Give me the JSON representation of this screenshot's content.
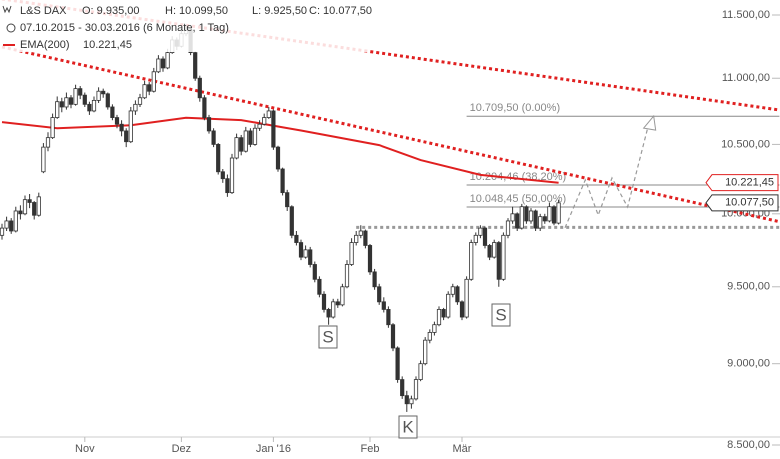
{
  "chart_data": {
    "type": "candlestick",
    "header": {
      "name": "L&S DAX",
      "ohlc": [
        "O: 9.935,00",
        "H: 10.099,50",
        "L: 9.925,50",
        "C: 10.077,50"
      ],
      "range": "07.10.2015 - 30.03.2016 (6 Monate, 1 Tag)"
    },
    "ylim": [
      8500,
      11500
    ],
    "log_scale": true,
    "yticks": [
      {
        "value": 11500,
        "label": "11.500,00"
      },
      {
        "value": 11000,
        "label": "11.000,00"
      },
      {
        "value": 10500,
        "label": "10.500,00"
      },
      {
        "value": 10000,
        "label": "10.000,00"
      },
      {
        "value": 9500,
        "label": "9.500,00"
      },
      {
        "value": 9000,
        "label": "9.000,00"
      },
      {
        "value": 8500,
        "label": "8.500,00"
      }
    ],
    "xticks": [
      {
        "value": 18,
        "label": "Nov"
      },
      {
        "value": 39,
        "label": "Dez"
      },
      {
        "value": 59,
        "label": "Jan '16"
      },
      {
        "value": 80,
        "label": "Feb"
      },
      {
        "value": 100,
        "label": "Mär"
      }
    ],
    "up_color": "#ffffff",
    "down_color": "#333333",
    "candles": [
      [
        9850,
        9930,
        9820,
        9900
      ],
      [
        9900,
        9980,
        9880,
        9950
      ],
      [
        9950,
        9970,
        9860,
        9880
      ],
      [
        9880,
        10050,
        9870,
        10020
      ],
      [
        10020,
        10060,
        9960,
        10000
      ],
      [
        10000,
        10130,
        9990,
        10100
      ],
      [
        10100,
        10140,
        10040,
        10080
      ],
      [
        10080,
        10090,
        9960,
        9990
      ],
      [
        9990,
        10150,
        9980,
        10120
      ],
      [
        10300,
        10510,
        10290,
        10480
      ],
      [
        10480,
        10590,
        10450,
        10550
      ],
      [
        10550,
        10730,
        10540,
        10700
      ],
      [
        10700,
        10860,
        10690,
        10820
      ],
      [
        10820,
        10850,
        10740,
        10780
      ],
      [
        10780,
        10890,
        10760,
        10850
      ],
      [
        10850,
        10870,
        10770,
        10800
      ],
      [
        10800,
        10950,
        10790,
        10920
      ],
      [
        10920,
        10940,
        10840,
        10870
      ],
      [
        10870,
        10890,
        10780,
        10800
      ],
      [
        10800,
        10820,
        10720,
        10750
      ],
      [
        10750,
        10860,
        10740,
        10830
      ],
      [
        10830,
        10930,
        10810,
        10900
      ],
      [
        10900,
        10920,
        10850,
        10880
      ],
      [
        10880,
        10890,
        10760,
        10780
      ],
      [
        10780,
        10800,
        10680,
        10700
      ],
      [
        10700,
        10720,
        10620,
        10650
      ],
      [
        10650,
        10680,
        10560,
        10600
      ],
      [
        10600,
        10620,
        10480,
        10520
      ],
      [
        10520,
        10780,
        10510,
        10750
      ],
      [
        10750,
        10830,
        10720,
        10800
      ],
      [
        10800,
        10880,
        10780,
        10850
      ],
      [
        10850,
        10980,
        10840,
        10950
      ],
      [
        10950,
        10970,
        10870,
        10900
      ],
      [
        10900,
        11080,
        10890,
        11050
      ],
      [
        11050,
        11180,
        11040,
        11150
      ],
      [
        11150,
        11170,
        11050,
        11080
      ],
      [
        11080,
        11230,
        11070,
        11200
      ],
      [
        11200,
        11330,
        11190,
        11300
      ],
      [
        11300,
        11320,
        11220,
        11250
      ],
      [
        11250,
        11380,
        11240,
        11350
      ],
      [
        11350,
        11420,
        11330,
        11380
      ],
      [
        11380,
        11390,
        11180,
        11200
      ],
      [
        11200,
        11210,
        10980,
        11000
      ],
      [
        11000,
        11020,
        10820,
        10850
      ],
      [
        10850,
        10870,
        10680,
        10700
      ],
      [
        10700,
        10720,
        10580,
        10600
      ],
      [
        10600,
        10620,
        10480,
        10500
      ],
      [
        10500,
        10510,
        10280,
        10300
      ],
      [
        10300,
        10320,
        10220,
        10250
      ],
      [
        10250,
        10280,
        10120,
        10150
      ],
      [
        10150,
        10430,
        10140,
        10400
      ],
      [
        10400,
        10580,
        10390,
        10550
      ],
      [
        10550,
        10570,
        10420,
        10450
      ],
      [
        10450,
        10630,
        10440,
        10600
      ],
      [
        10600,
        10620,
        10480,
        10500
      ],
      [
        10500,
        10650,
        10490,
        10620
      ],
      [
        10620,
        10680,
        10600,
        10650
      ],
      [
        10650,
        10730,
        10640,
        10700
      ],
      [
        10700,
        10780,
        10690,
        10750
      ],
      [
        10750,
        10760,
        10460,
        10480
      ],
      [
        10480,
        10490,
        10300,
        10320
      ],
      [
        10320,
        10330,
        10130,
        10150
      ],
      [
        10150,
        10170,
        10020,
        10050
      ],
      [
        10050,
        10060,
        9830,
        9850
      ],
      [
        9850,
        9880,
        9780,
        9800
      ],
      [
        9800,
        9820,
        9680,
        9700
      ],
      [
        9700,
        9780,
        9690,
        9750
      ],
      [
        9750,
        9770,
        9630,
        9650
      ],
      [
        9650,
        9670,
        9530,
        9550
      ],
      [
        9550,
        9570,
        9430,
        9450
      ],
      [
        9450,
        9470,
        9330,
        9350
      ],
      [
        9350,
        9360,
        9250,
        9300
      ],
      [
        9300,
        9420,
        9290,
        9400
      ],
      [
        9400,
        9420,
        9360,
        9380
      ],
      [
        9380,
        9520,
        9370,
        9500
      ],
      [
        9500,
        9680,
        9490,
        9650
      ],
      [
        9650,
        9830,
        9640,
        9800
      ],
      [
        9800,
        9880,
        9780,
        9850
      ],
      [
        9850,
        9920,
        9830,
        9880
      ],
      [
        9880,
        9890,
        9760,
        9780
      ],
      [
        9780,
        9790,
        9580,
        9600
      ],
      [
        9600,
        9620,
        9480,
        9500
      ],
      [
        9500,
        9520,
        9380,
        9400
      ],
      [
        9400,
        9430,
        9330,
        9350
      ],
      [
        9350,
        9370,
        9230,
        9250
      ],
      [
        9250,
        9260,
        9080,
        9100
      ],
      [
        9100,
        9110,
        8880,
        8900
      ],
      [
        8900,
        8920,
        8780,
        8800
      ],
      [
        8800,
        8830,
        8700,
        8750
      ],
      [
        8750,
        8800,
        8720,
        8780
      ],
      [
        8780,
        8920,
        8770,
        8900
      ],
      [
        8900,
        9020,
        8890,
        9000
      ],
      [
        9000,
        9170,
        8990,
        9150
      ],
      [
        9150,
        9220,
        9130,
        9200
      ],
      [
        9200,
        9270,
        9180,
        9250
      ],
      [
        9250,
        9370,
        9240,
        9350
      ],
      [
        9350,
        9360,
        9280,
        9300
      ],
      [
        9300,
        9470,
        9290,
        9450
      ],
      [
        9450,
        9520,
        9430,
        9500
      ],
      [
        9500,
        9510,
        9380,
        9400
      ],
      [
        9400,
        9410,
        9280,
        9300
      ],
      [
        9300,
        9570,
        9290,
        9550
      ],
      [
        9550,
        9820,
        9540,
        9800
      ],
      [
        9800,
        9870,
        9780,
        9850
      ],
      [
        9850,
        9920,
        9830,
        9900
      ],
      [
        9900,
        9910,
        9760,
        9780
      ],
      [
        9780,
        9790,
        9680,
        9700
      ],
      [
        9700,
        9820,
        9690,
        9800
      ],
      [
        9800,
        9810,
        9500,
        9550
      ],
      [
        9550,
        9870,
        9540,
        9850
      ],
      [
        9850,
        9970,
        9830,
        9950
      ],
      [
        9950,
        10050,
        9930,
        10000
      ],
      [
        10000,
        10010,
        9880,
        9900
      ],
      [
        9900,
        10070,
        9890,
        10050
      ],
      [
        10050,
        10060,
        9930,
        9950
      ],
      [
        9950,
        10040,
        9930,
        10020
      ],
      [
        10020,
        10030,
        9880,
        9900
      ],
      [
        9900,
        10000,
        9880,
        9980
      ],
      [
        9980,
        10000,
        9930,
        9950
      ],
      [
        9950,
        10080,
        9940,
        10050
      ],
      [
        10050,
        10060,
        9920,
        9935
      ],
      [
        9935,
        10099.5,
        9925.5,
        10077.5
      ]
    ],
    "ema": {
      "name": "EMA(200)",
      "value_label": "10.221,45",
      "color": "#e02020",
      "x": [
        0,
        12,
        28,
        40,
        52,
        65,
        82,
        91,
        104,
        121
      ],
      "values": [
        10666,
        10620,
        10643,
        10699,
        10681,
        10603,
        10495,
        10385,
        10277,
        10221.45
      ]
    },
    "trendlines": [
      {
        "color": "#e02020",
        "x": [
          0,
          169
        ],
        "values": [
          11630,
          10757
        ]
      },
      {
        "color": "#e02020",
        "x": [
          0,
          169
        ],
        "values": [
          11245,
          9945
        ]
      }
    ],
    "levels": [
      {
        "value": 10709.5,
        "label": "10.709,50 (0.00%)",
        "x": [
          101,
          169
        ]
      },
      {
        "value": 10204.46,
        "label": "10.204,46 (38,20%)",
        "x": [
          101,
          169
        ]
      },
      {
        "value": 10048.45,
        "label": "10.048,45 (50,00%)",
        "x": [
          101,
          169
        ]
      }
    ],
    "neckline": {
      "value": 9905,
      "x": [
        77,
        169
      ]
    },
    "projection": {
      "x": [
        122.4,
        126.8,
        129.6,
        132.6,
        136,
        140.8
      ],
      "values": [
        9902,
        10241,
        9991,
        10256,
        10048,
        10681
      ]
    },
    "annotations": [
      {
        "label": "S"
      },
      {
        "label": "K"
      },
      {
        "label": "S"
      }
    ],
    "flags": [
      {
        "value": 10221.45,
        "label": "10.221,45",
        "color": "#e02020"
      },
      {
        "value": 10077.5,
        "label": "10.077,50",
        "color": "#333333"
      }
    ]
  }
}
